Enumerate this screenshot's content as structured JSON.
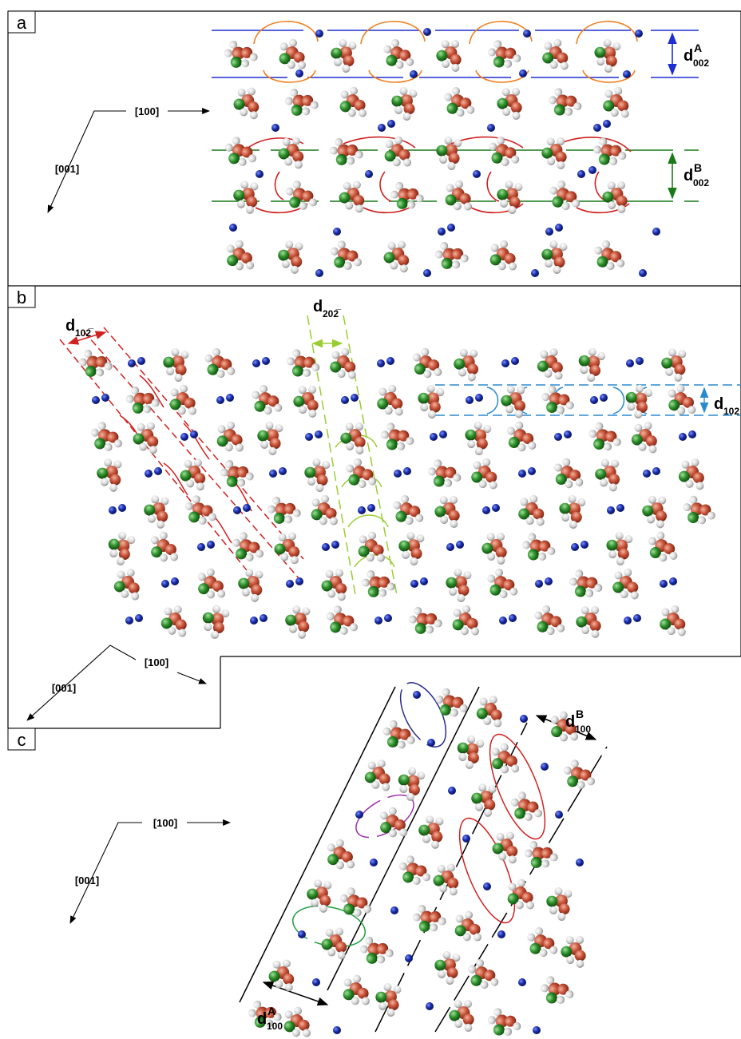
{
  "panels": [
    {
      "label": "a",
      "axis_labels": [
        "[100]",
        "[001]"
      ],
      "spacings": [
        {
          "symbol": "d",
          "subscript": "002",
          "superscript": "A"
        },
        {
          "symbol": "d",
          "subscript": "002",
          "superscript": "B"
        }
      ]
    },
    {
      "label": "b",
      "axis_labels": [
        "[100]",
        "[001]"
      ],
      "spacings": [
        {
          "symbol": "d",
          "subscript": "102̅"
        },
        {
          "symbol": "d",
          "subscript": "202̅"
        },
        {
          "symbol": "d",
          "subscript": "102"
        }
      ]
    },
    {
      "label": "c",
      "axis_labels": [
        "[100]",
        "[001]"
      ],
      "spacings": [
        {
          "symbol": "d",
          "subscript": "100",
          "superscript": "A"
        },
        {
          "symbol": "d",
          "subscript": "100",
          "superscript": "B"
        }
      ]
    }
  ]
}
